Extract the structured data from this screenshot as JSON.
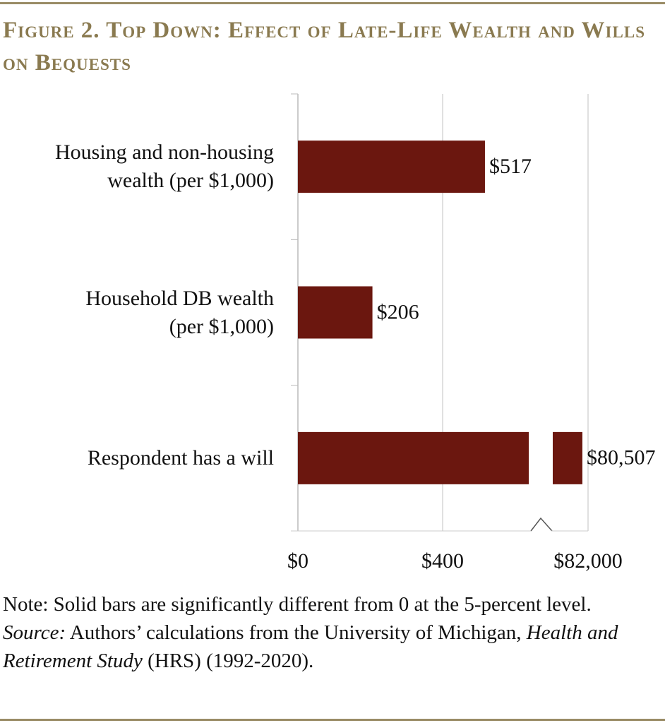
{
  "chart_data": {
    "type": "bar",
    "orientation": "horizontal",
    "title": "Figure 2. Top Down: Effect of Late-Life Wealth and Wills on Bequests",
    "categories": [
      "Housing and non-housing\nwealth (per $1,000)",
      "Household DB wealth\n(per $1,000)",
      "Respondent has a will"
    ],
    "values": [
      517,
      206,
      80507
    ],
    "value_labels": [
      "$517",
      "$206",
      "$80,507"
    ],
    "color": "#6b170f",
    "xlim": [
      0,
      82000
    ],
    "axis_break": [
      640,
      72700
    ],
    "xticks": [
      {
        "value": 0,
        "label": "$0"
      },
      {
        "value": 400,
        "label": "$400"
      },
      {
        "value": 82000,
        "label": "$82,000"
      }
    ],
    "grid": true,
    "note": "Note: Solid bars are significantly different from 0 at the 5-percent level.",
    "source_label": "Source:",
    "source_text": "Authors’ calculations from the University of Michigan,",
    "source_title": "Health and Retirement Study",
    "source_tail": "(HRS) (1992-2020)."
  }
}
